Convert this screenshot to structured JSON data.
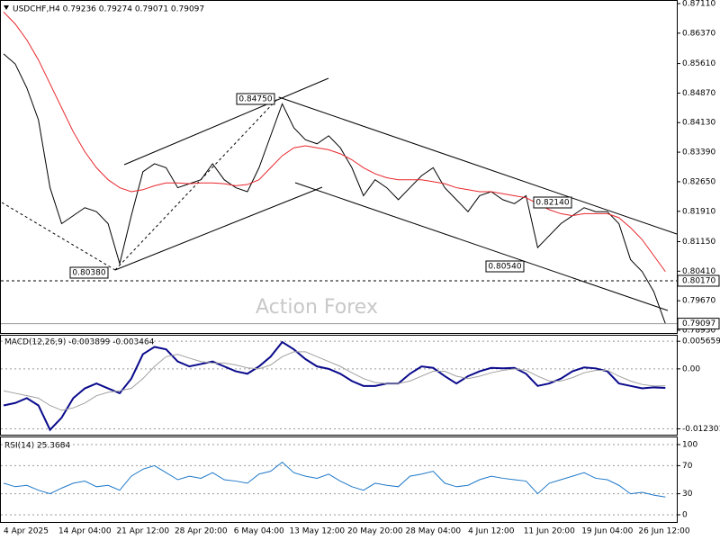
{
  "chart_data": [
    {
      "type": "line",
      "title": "USDCHF,H4  0.79236 0.79274 0.79071 0.79097",
      "watermark": "Action Forex",
      "ylim": [
        0.7893,
        0.8711
      ],
      "yticks": [
        {
          "value": 0.8711,
          "label": "0.87110"
        },
        {
          "value": 0.8637,
          "label": "0.86370"
        },
        {
          "value": 0.8561,
          "label": "0.85610"
        },
        {
          "value": 0.8487,
          "label": "0.84870"
        },
        {
          "value": 0.8413,
          "label": "0.84130"
        },
        {
          "value": 0.8339,
          "label": "0.83390"
        },
        {
          "value": 0.8265,
          "label": "0.82650"
        },
        {
          "value": 0.8191,
          "label": "0.81910"
        },
        {
          "value": 0.8115,
          "label": "0.81150"
        },
        {
          "value": 0.8041,
          "label": "0.80410"
        },
        {
          "value": 0.7967,
          "label": "0.79670"
        },
        {
          "value": 0.7893,
          "label": "0.78930"
        }
      ],
      "grid": false,
      "hline": {
        "value": 0.8017,
        "label": "0.80170"
      },
      "annotations": [
        "0.84750",
        "0.80380",
        "0.80540",
        "0.82140"
      ],
      "series": [
        {
          "color": "#000000",
          "values": [
            0.8585,
            0.856,
            0.85,
            0.842,
            0.825,
            0.816,
            0.818,
            0.82,
            0.819,
            0.816,
            0.806,
            0.818,
            0.829,
            0.831,
            0.83,
            0.825,
            0.826,
            0.827,
            0.831,
            0.827,
            0.825,
            0.824,
            0.83,
            0.838,
            0.846,
            0.84,
            0.837,
            0.836,
            0.838,
            0.835,
            0.83,
            0.823,
            0.827,
            0.825,
            0.822,
            0.825,
            0.828,
            0.83,
            0.825,
            0.822,
            0.819,
            0.823,
            0.824,
            0.822,
            0.821,
            0.823,
            0.81,
            0.813,
            0.816,
            0.818,
            0.82,
            0.819,
            0.819,
            0.816,
            0.807,
            0.804,
            0.799,
            0.79097
          ]
        },
        {
          "color": "#e8252b",
          "values": [
            0.869,
            0.866,
            0.862,
            0.857,
            0.851,
            0.845,
            0.839,
            0.834,
            0.83,
            0.827,
            0.825,
            0.824,
            0.8245,
            0.8255,
            0.8262,
            0.8262,
            0.826,
            0.8262,
            0.8262,
            0.826,
            0.8255,
            0.8258,
            0.827,
            0.83,
            0.833,
            0.835,
            0.8355,
            0.835,
            0.8345,
            0.8335,
            0.832,
            0.83,
            0.8285,
            0.8275,
            0.827,
            0.827,
            0.827,
            0.8265,
            0.826,
            0.825,
            0.8245,
            0.824,
            0.824,
            0.8235,
            0.823,
            0.8225,
            0.821,
            0.8195,
            0.8185,
            0.818,
            0.8185,
            0.8185,
            0.8185,
            0.8175,
            0.815,
            0.812,
            0.808,
            0.804
          ]
        }
      ]
    },
    {
      "type": "line",
      "title": "MACD(12,26,9) -0.003899 -0.003464",
      "ylim": [
        -0.0135,
        0.0068
      ],
      "yticks": [
        0.005659,
        {
          "value": 0,
          "label": "0.00"
        },
        -0.012301
      ],
      "grid": true,
      "series": [
        {
          "color": "#0a0a8c",
          "values": [
            -0.0075,
            -0.007,
            -0.006,
            -0.0075,
            -0.0125,
            -0.01,
            -0.006,
            -0.004,
            -0.003,
            -0.004,
            -0.005,
            -0.002,
            0.003,
            0.0045,
            0.004,
            0.0015,
            0.0005,
            0.001,
            0.0015,
            0.0005,
            -0.0005,
            -0.001,
            0.0005,
            0.0025,
            0.0055,
            0.004,
            0.002,
            0.0005,
            0.0,
            -0.001,
            -0.0025,
            -0.0035,
            -0.0035,
            -0.003,
            -0.003,
            -0.001,
            0.0005,
            0.0002,
            -0.0015,
            -0.003,
            -0.0015,
            -0.0005,
            0.0002,
            0.0001,
            0.0002,
            -0.001,
            -0.0035,
            -0.003,
            -0.002,
            -0.0005,
            0.0003,
            0.0001,
            -0.0005,
            -0.003,
            -0.0035,
            -0.004,
            -0.0038,
            -0.003899
          ]
        },
        {
          "color": "#a0a0a0",
          "values": [
            -0.0045,
            -0.005,
            -0.0055,
            -0.006,
            -0.0075,
            -0.0085,
            -0.008,
            -0.007,
            -0.0055,
            -0.0048,
            -0.0045,
            -0.004,
            -0.002,
            0.0005,
            0.0025,
            0.003,
            0.0022,
            0.0015,
            0.0012,
            0.0012,
            0.0008,
            0.0002,
            0.0,
            0.0008,
            0.0025,
            0.0035,
            0.0035,
            0.0025,
            0.0015,
            0.0005,
            -0.0008,
            -0.002,
            -0.0028,
            -0.003,
            -0.003,
            -0.0025,
            -0.0015,
            -0.0005,
            -0.0005,
            -0.0015,
            -0.002,
            -0.0015,
            -0.0008,
            -0.0003,
            0.0,
            -0.0003,
            -0.0015,
            -0.0025,
            -0.0025,
            -0.0018,
            -0.0008,
            -0.0003,
            -0.0003,
            -0.0015,
            -0.0025,
            -0.0032,
            -0.0035,
            -0.003464
          ]
        }
      ]
    },
    {
      "type": "line",
      "title": "RSI(14) 25.3684",
      "ylim": [
        0,
        100
      ],
      "yticks": [
        100,
        70,
        30,
        0
      ],
      "grid": true,
      "categories": [
        "4 Apr 2025",
        null,
        null,
        null,
        null,
        null,
        null,
        "14 Apr 04:00",
        null,
        null,
        null,
        null,
        "21 Apr 12:00",
        null,
        null,
        null,
        null,
        "28 Apr 20:00",
        null,
        null,
        null,
        null,
        "6 May 04:00",
        null,
        null,
        null,
        null,
        "13 May 12:00",
        null,
        null,
        null,
        null,
        "20 May 20:00",
        null,
        null,
        null,
        null,
        "28 May 04:00",
        null,
        null,
        null,
        null,
        "4 Jun 12:00",
        null,
        null,
        null,
        null,
        "11 Jun 20:00",
        null,
        null,
        null,
        null,
        "19 Jun 04:00",
        null,
        null,
        null,
        null,
        "26 Jun 12:00"
      ],
      "series": [
        {
          "color": "#1e78c8",
          "values": [
            45,
            40,
            42,
            35,
            30,
            38,
            45,
            48,
            40,
            42,
            35,
            55,
            65,
            70,
            60,
            50,
            55,
            52,
            60,
            50,
            48,
            45,
            58,
            62,
            75,
            60,
            55,
            52,
            58,
            48,
            40,
            35,
            45,
            42,
            40,
            55,
            58,
            62,
            45,
            40,
            42,
            50,
            55,
            52,
            50,
            48,
            30,
            45,
            50,
            55,
            60,
            52,
            50,
            42,
            30,
            32,
            28,
            25.3684
          ]
        }
      ]
    }
  ]
}
